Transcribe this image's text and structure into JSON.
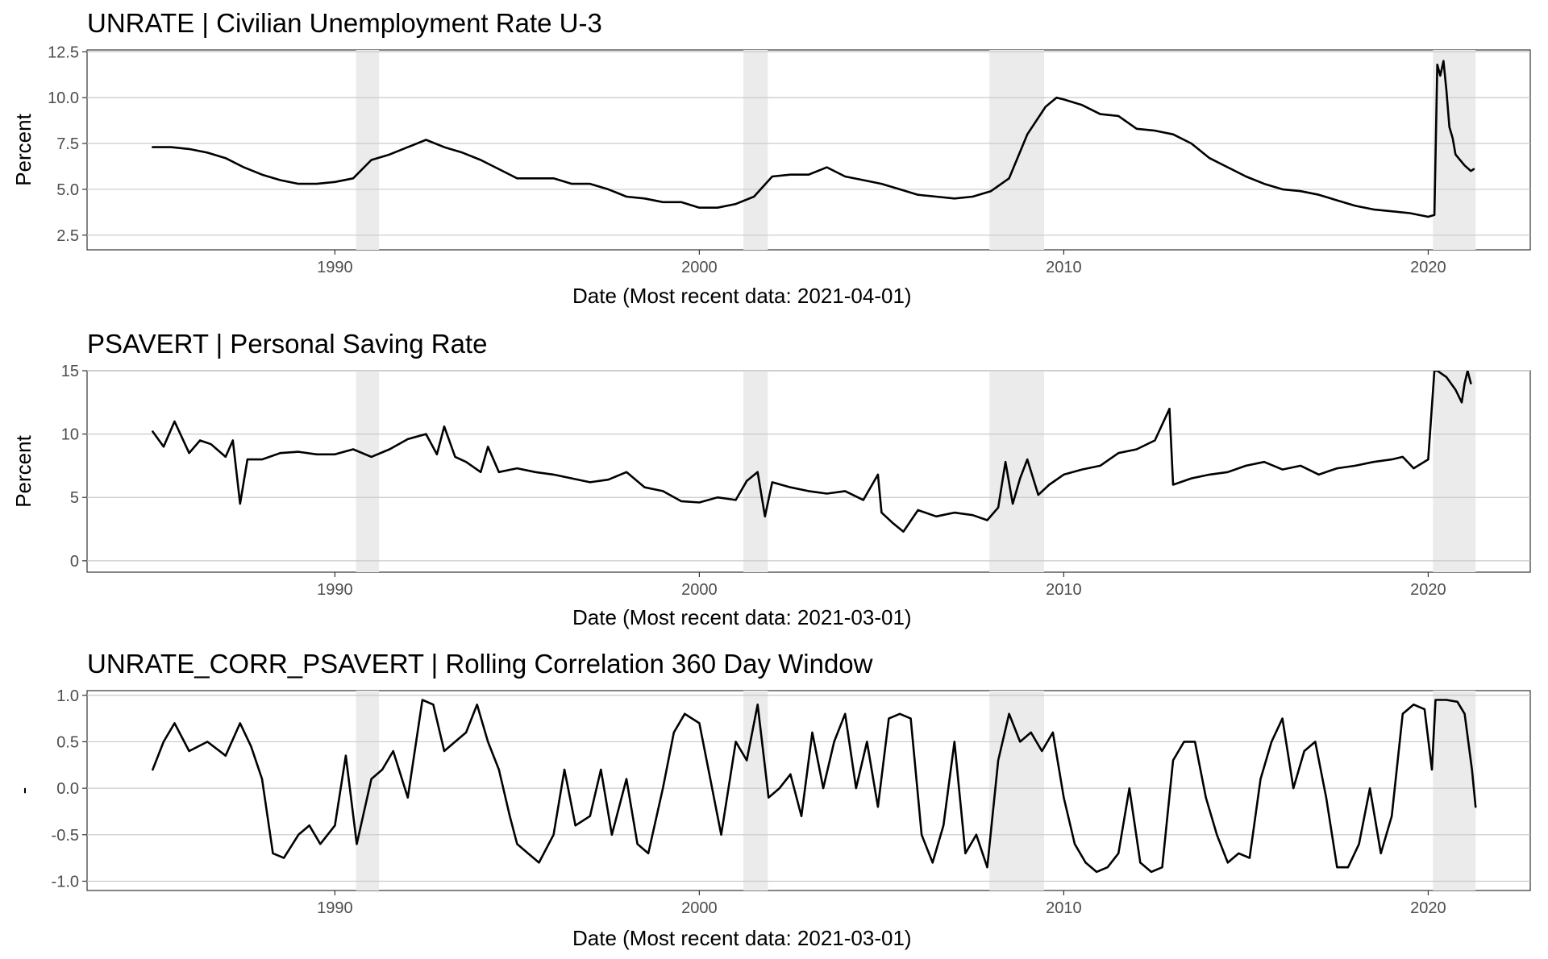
{
  "chart_data": [
    {
      "type": "line",
      "title": "UNRATE | Civilian Unemployment Rate U-3",
      "xlabel": "Date (Most recent data: 2021-04-01)",
      "ylabel": "Percent",
      "xlim": [
        1983.2,
        2022.8
      ],
      "ylim": [
        1.7,
        12.6
      ],
      "yticks": [
        2.5,
        5.0,
        7.5,
        10.0,
        12.5
      ],
      "ytick_labels": [
        "2.5",
        "5.0",
        "7.5",
        "10.0",
        "12.5"
      ],
      "xticks": [
        1990,
        2000,
        2010,
        2020
      ],
      "xtick_labels": [
        "1990",
        "2000",
        "2010",
        "2020"
      ],
      "grid": true,
      "recessions": [
        [
          1990.58,
          1991.21
        ],
        [
          2001.21,
          2001.88
        ],
        [
          2007.96,
          2009.46
        ],
        [
          2020.13,
          2021.3
        ]
      ],
      "series": [
        {
          "x": [
            1985.0,
            1985.5,
            1986.0,
            1986.5,
            1987.0,
            1987.5,
            1988.0,
            1988.5,
            1989.0,
            1989.5,
            1990.0,
            1990.5,
            1991.0,
            1991.5,
            1992.0,
            1992.5,
            1993.0,
            1993.5,
            1994.0,
            1994.5,
            1995.0,
            1995.5,
            1996.0,
            1996.5,
            1997.0,
            1997.5,
            1998.0,
            1998.5,
            1999.0,
            1999.5,
            2000.0,
            2000.5,
            2001.0,
            2001.5,
            2002.0,
            2002.5,
            2003.0,
            2003.5,
            2004.0,
            2004.5,
            2005.0,
            2005.5,
            2006.0,
            2006.5,
            2007.0,
            2007.5,
            2008.0,
            2008.5,
            2009.0,
            2009.5,
            2009.8,
            2010.0,
            2010.5,
            2011.0,
            2011.5,
            2012.0,
            2012.5,
            2013.0,
            2013.5,
            2014.0,
            2014.5,
            2015.0,
            2015.5,
            2016.0,
            2016.5,
            2017.0,
            2017.5,
            2018.0,
            2018.5,
            2019.0,
            2019.5,
            2020.0,
            2020.17,
            2020.25,
            2020.33,
            2020.42,
            2020.5,
            2020.58,
            2020.67,
            2020.75,
            2020.83,
            2021.0,
            2021.17,
            2021.25
          ],
          "y": [
            7.3,
            7.3,
            7.2,
            7.0,
            6.7,
            6.2,
            5.8,
            5.5,
            5.3,
            5.3,
            5.4,
            5.6,
            6.6,
            6.9,
            7.3,
            7.7,
            7.3,
            7.0,
            6.6,
            6.1,
            5.6,
            5.6,
            5.6,
            5.3,
            5.3,
            5.0,
            4.6,
            4.5,
            4.3,
            4.3,
            4.0,
            4.0,
            4.2,
            4.6,
            5.7,
            5.8,
            5.8,
            6.2,
            5.7,
            5.5,
            5.3,
            5.0,
            4.7,
            4.6,
            4.5,
            4.6,
            4.9,
            5.6,
            8.0,
            9.5,
            10.0,
            9.9,
            9.6,
            9.1,
            9.0,
            8.3,
            8.2,
            8.0,
            7.5,
            6.7,
            6.2,
            5.7,
            5.3,
            5.0,
            4.9,
            4.7,
            4.4,
            4.1,
            3.9,
            3.8,
            3.7,
            3.5,
            3.6,
            11.8,
            11.2,
            12.0,
            10.4,
            8.4,
            7.8,
            6.9,
            6.7,
            6.3,
            6.0,
            6.1
          ]
        }
      ]
    },
    {
      "type": "line",
      "title": "PSAVERT | Personal Saving Rate",
      "xlabel": "Date (Most recent data: 2021-03-01)",
      "ylabel": "Percent",
      "xlim": [
        1983.2,
        2022.8
      ],
      "ylim": [
        -0.9,
        15.0
      ],
      "yticks": [
        0,
        5,
        10,
        15
      ],
      "ytick_labels": [
        "0",
        "5",
        "10",
        "15"
      ],
      "xticks": [
        1990,
        2000,
        2010,
        2020
      ],
      "xtick_labels": [
        "1990",
        "2000",
        "2010",
        "2020"
      ],
      "grid": true,
      "recessions": [
        [
          1990.58,
          1991.21
        ],
        [
          2001.21,
          2001.88
        ],
        [
          2007.96,
          2009.46
        ],
        [
          2020.13,
          2021.3
        ]
      ],
      "series": [
        {
          "x": [
            1985.0,
            1985.3,
            1985.6,
            1986.0,
            1986.3,
            1986.6,
            1987.0,
            1987.2,
            1987.4,
            1987.6,
            1988.0,
            1988.5,
            1989.0,
            1989.5,
            1990.0,
            1990.5,
            1991.0,
            1991.5,
            1992.0,
            1992.5,
            1992.8,
            1993.0,
            1993.3,
            1993.6,
            1994.0,
            1994.2,
            1994.5,
            1995.0,
            1995.5,
            1996.0,
            1996.5,
            1997.0,
            1997.5,
            1998.0,
            1998.5,
            1999.0,
            1999.5,
            2000.0,
            2000.5,
            2001.0,
            2001.3,
            2001.6,
            2001.8,
            2002.0,
            2002.5,
            2003.0,
            2003.5,
            2004.0,
            2004.5,
            2004.9,
            2005.0,
            2005.3,
            2005.6,
            2006.0,
            2006.5,
            2007.0,
            2007.5,
            2007.9,
            2008.2,
            2008.4,
            2008.6,
            2008.8,
            2009.0,
            2009.3,
            2009.6,
            2010.0,
            2010.5,
            2011.0,
            2011.5,
            2012.0,
            2012.5,
            2012.9,
            2013.0,
            2013.5,
            2014.0,
            2014.5,
            2015.0,
            2015.5,
            2016.0,
            2016.5,
            2017.0,
            2017.5,
            2018.0,
            2018.5,
            2019.0,
            2019.3,
            2019.6,
            2020.0,
            2020.17,
            2020.25,
            2020.5,
            2020.75,
            2020.92,
            2021.0,
            2021.08,
            2021.17
          ],
          "y": [
            10.2,
            9.0,
            11.0,
            8.5,
            9.5,
            9.2,
            8.2,
            9.5,
            4.5,
            8.0,
            8.0,
            8.5,
            8.6,
            8.4,
            8.4,
            8.8,
            8.2,
            8.8,
            9.6,
            10.0,
            8.4,
            10.6,
            8.2,
            7.8,
            7.0,
            9.0,
            7.0,
            7.3,
            7.0,
            6.8,
            6.5,
            6.2,
            6.4,
            7.0,
            5.8,
            5.5,
            4.7,
            4.6,
            5.0,
            4.8,
            6.3,
            7.0,
            3.5,
            6.2,
            5.8,
            5.5,
            5.3,
            5.5,
            4.8,
            6.8,
            3.8,
            3.0,
            2.3,
            4.0,
            3.5,
            3.8,
            3.6,
            3.2,
            4.2,
            7.8,
            4.5,
            6.5,
            8.0,
            5.2,
            6.0,
            6.8,
            7.2,
            7.5,
            8.5,
            8.8,
            9.5,
            12.0,
            6.0,
            6.5,
            6.8,
            7.0,
            7.5,
            7.8,
            7.2,
            7.5,
            6.8,
            7.3,
            7.5,
            7.8,
            8.0,
            8.2,
            7.3,
            8.0,
            15.0,
            15.0,
            14.5,
            13.5,
            12.5,
            14.0,
            15.0,
            14.0
          ]
        }
      ]
    },
    {
      "type": "line",
      "title": "UNRATE_CORR_PSAVERT | Rolling Correlation  360  Day Window",
      "xlabel": "Date (Most recent data: 2021-03-01)",
      "ylabel": "-",
      "xlim": [
        1983.2,
        2022.8
      ],
      "ylim": [
        -1.1,
        1.05
      ],
      "yticks": [
        -1.0,
        -0.5,
        0.0,
        0.5,
        1.0
      ],
      "ytick_labels": [
        "-1.0",
        "-0.5",
        "0.0",
        "0.5",
        "1.0"
      ],
      "xticks": [
        1990,
        2000,
        2010,
        2020
      ],
      "xtick_labels": [
        "1990",
        "2000",
        "2010",
        "2020"
      ],
      "grid": true,
      "recessions": [
        [
          1990.58,
          1991.21
        ],
        [
          2001.21,
          2001.88
        ],
        [
          2007.96,
          2009.46
        ],
        [
          2020.13,
          2021.3
        ]
      ],
      "series": [
        {
          "x": [
            1985.0,
            1985.3,
            1985.6,
            1986.0,
            1986.5,
            1987.0,
            1987.4,
            1987.7,
            1988.0,
            1988.3,
            1988.6,
            1989.0,
            1989.3,
            1989.6,
            1990.0,
            1990.3,
            1990.6,
            1991.0,
            1991.3,
            1991.6,
            1992.0,
            1992.4,
            1992.7,
            1993.0,
            1993.3,
            1993.6,
            1993.9,
            1994.2,
            1994.5,
            1994.8,
            1995.0,
            1995.3,
            1995.6,
            1996.0,
            1996.3,
            1996.6,
            1997.0,
            1997.3,
            1997.6,
            1998.0,
            1998.3,
            1998.6,
            1999.0,
            1999.3,
            1999.6,
            2000.0,
            2000.3,
            2000.6,
            2001.0,
            2001.3,
            2001.6,
            2001.9,
            2002.2,
            2002.5,
            2002.8,
            2003.1,
            2003.4,
            2003.7,
            2004.0,
            2004.3,
            2004.6,
            2004.9,
            2005.2,
            2005.5,
            2005.8,
            2006.1,
            2006.4,
            2006.7,
            2007.0,
            2007.3,
            2007.6,
            2007.9,
            2008.2,
            2008.5,
            2008.8,
            2009.1,
            2009.4,
            2009.7,
            2010.0,
            2010.3,
            2010.6,
            2010.9,
            2011.2,
            2011.5,
            2011.8,
            2012.1,
            2012.4,
            2012.7,
            2013.0,
            2013.3,
            2013.6,
            2013.9,
            2014.2,
            2014.5,
            2014.8,
            2015.1,
            2015.4,
            2015.7,
            2016.0,
            2016.3,
            2016.6,
            2016.9,
            2017.2,
            2017.5,
            2017.8,
            2018.1,
            2018.4,
            2018.7,
            2019.0,
            2019.3,
            2019.6,
            2019.9,
            2020.1,
            2020.2,
            2020.5,
            2020.8,
            2021.0,
            2021.2,
            2021.3
          ],
          "y": [
            0.2,
            0.5,
            0.7,
            0.4,
            0.5,
            0.35,
            0.7,
            0.45,
            0.1,
            -0.7,
            -0.75,
            -0.5,
            -0.4,
            -0.6,
            -0.4,
            0.35,
            -0.6,
            0.1,
            0.2,
            0.4,
            -0.1,
            0.95,
            0.9,
            0.4,
            0.5,
            0.6,
            0.9,
            0.5,
            0.2,
            -0.3,
            -0.6,
            -0.7,
            -0.8,
            -0.5,
            0.2,
            -0.4,
            -0.3,
            0.2,
            -0.5,
            0.1,
            -0.6,
            -0.7,
            0.0,
            0.6,
            0.8,
            0.7,
            0.1,
            -0.5,
            0.5,
            0.3,
            0.9,
            -0.1,
            0.0,
            0.15,
            -0.3,
            0.6,
            0.0,
            0.5,
            0.8,
            0.0,
            0.5,
            -0.2,
            0.75,
            0.8,
            0.75,
            -0.5,
            -0.8,
            -0.4,
            0.5,
            -0.7,
            -0.5,
            -0.85,
            0.3,
            0.8,
            0.5,
            0.6,
            0.4,
            0.6,
            -0.1,
            -0.6,
            -0.8,
            -0.9,
            -0.85,
            -0.7,
            0.0,
            -0.8,
            -0.9,
            -0.85,
            0.3,
            0.5,
            0.5,
            -0.1,
            -0.5,
            -0.8,
            -0.7,
            -0.75,
            0.1,
            0.5,
            0.75,
            0.0,
            0.4,
            0.5,
            -0.1,
            -0.85,
            -0.85,
            -0.6,
            0.0,
            -0.7,
            -0.3,
            0.8,
            0.9,
            0.85,
            0.2,
            0.95,
            0.95,
            0.93,
            0.8,
            0.2,
            -0.2
          ]
        }
      ]
    }
  ]
}
